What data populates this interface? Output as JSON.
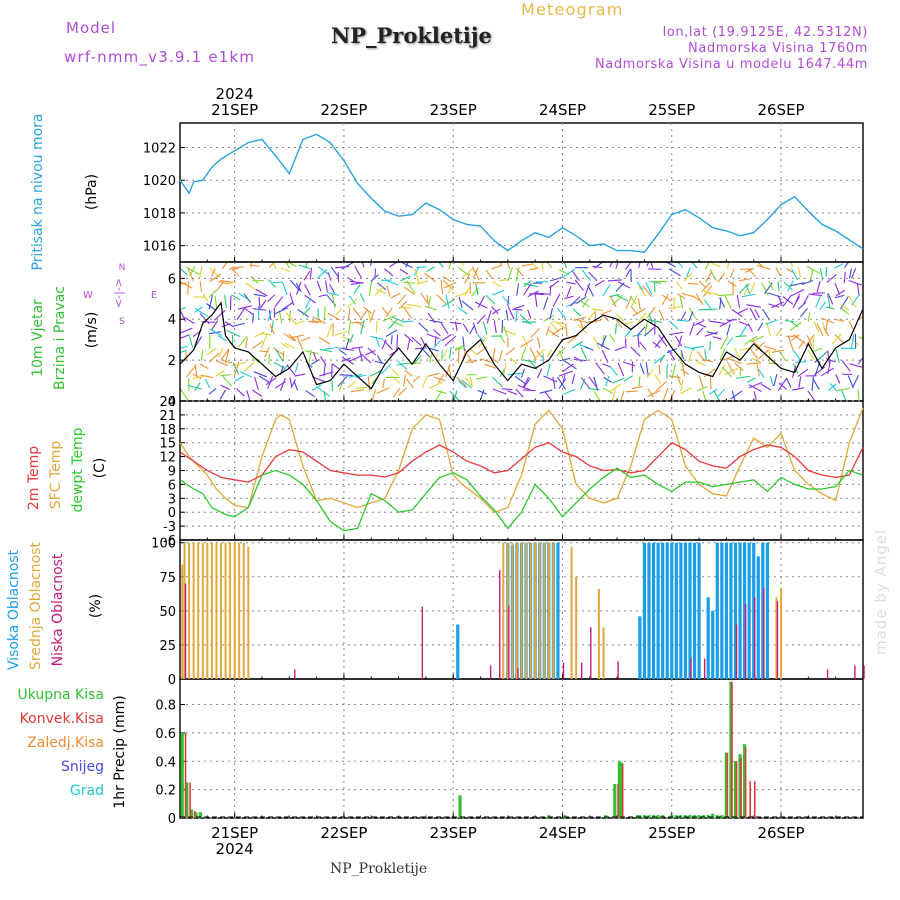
{
  "header": {
    "model_label": "Model",
    "model_name": "wrf-nmm_v3.9.1 e1km",
    "station": "NP_Prokletije",
    "meteogram_label": "Meteogram",
    "lonlat": "lon,lat (19.9125E, 42.5312N)",
    "elevation": "Nadmorska Visina 1760m",
    "model_elevation": "Nadmorska Visina u modelu 1647.44m",
    "footer_station": "NP_Prokletije",
    "watermark": "made by Angel"
  },
  "colors": {
    "pressure": "#29a3e0",
    "temp2m": "#e8393e",
    "sfc": "#e0a83a",
    "dewpt": "#2ec82e",
    "high_cloud": "#1b9ee8",
    "mid_cloud": "#e0a83a",
    "low_cloud": "#c8187a",
    "precip_total": "#32c032",
    "precip_conv": "#e03a3a",
    "precip_froz": "#f08a2e",
    "snow": "#4848e0",
    "hail": "#22c8c8",
    "header_purple": "#b04cd6",
    "header_gold": "#e6b84a"
  },
  "chart_data": {
    "type": "meteogram",
    "x_axis": {
      "type": "date",
      "start": "2024-09-20 12:00",
      "end": "2024-09-26 18:00",
      "top_year": "2024",
      "bottom_year": "2024",
      "day_labels": [
        "21SEP",
        "22SEP",
        "23SEP",
        "24SEP",
        "25SEP",
        "26SEP"
      ],
      "day_offsets": [
        12,
        36,
        60,
        84,
        108,
        132
      ],
      "grid": "dotted"
    },
    "panels": [
      {
        "id": "pressure",
        "title": "Pritisak na nivou mora",
        "unit": "(hPa)",
        "ylim": [
          1015,
          1023.5
        ],
        "yticks": [
          1016,
          1018,
          1020,
          1022
        ],
        "series": [
          {
            "name": "pressure",
            "hours": [
              0,
              2,
              3,
              5,
              7,
              9,
              12,
              15,
              18,
              21,
              24,
              27,
              30,
              33,
              36,
              39,
              42,
              45,
              48,
              51,
              54,
              57,
              60,
              63,
              66,
              69,
              72,
              75,
              78,
              81,
              84,
              87,
              90,
              93,
              96,
              99,
              102,
              105,
              108,
              111,
              114,
              117,
              120,
              123,
              126,
              129,
              132,
              135,
              138,
              141,
              144,
              150
            ],
            "values": [
              1020,
              1019.2,
              1019.9,
              1020,
              1020.8,
              1021.3,
              1021.8,
              1022.3,
              1022.5,
              1021.5,
              1020.4,
              1022.5,
              1022.8,
              1022.3,
              1021.2,
              1019.8,
              1018.9,
              1018.1,
              1017.8,
              1017.9,
              1018.6,
              1018.2,
              1017.6,
              1017.3,
              1017.2,
              1016.3,
              1015.7,
              1016.3,
              1016.8,
              1016.5,
              1017.1,
              1016.6,
              1016,
              1016.1,
              1015.7,
              1015.7,
              1015.6,
              1016.7,
              1017.9,
              1018.2,
              1017.7,
              1017.1,
              1016.9,
              1016.6,
              1016.8,
              1017.6,
              1018.5,
              1019,
              1018.1,
              1017.3,
              1016.9,
              1015.8
            ]
          }
        ]
      },
      {
        "id": "wind",
        "title": "10m Vjetar",
        "title2": "Brzina i Pravac",
        "unit": "(m/s)",
        "legend_n": "N",
        "legend_arrow": "<-|->",
        "legend_w": "W",
        "legend_e": "E",
        "legend_s": "S",
        "ylim": [
          0,
          6.8
        ],
        "yticks": [
          0,
          2,
          4,
          6
        ],
        "series": [
          {
            "name": "wind_speed",
            "hours": [
              0,
              3,
              5,
              7,
              9,
              10,
              12,
              15,
              18,
              21,
              24,
              27,
              30,
              33,
              36,
              42,
              45,
              48,
              51,
              54,
              57,
              60,
              63,
              66,
              69,
              72,
              75,
              78,
              81,
              84,
              87,
              90,
              93,
              96,
              99,
              102,
              105,
              108,
              111,
              114,
              117,
              120,
              123,
              126,
              129,
              132,
              135,
              138,
              141,
              144,
              147,
              150
            ],
            "values": [
              1.8,
              2.5,
              3.8,
              4.2,
              4.8,
              3.2,
              2.6,
              2.4,
              1.8,
              1.2,
              1.6,
              2.4,
              0.8,
              1.0,
              1.8,
              0.6,
              1.8,
              2.6,
              1.8,
              2.8,
              1.8,
              1.0,
              2.4,
              3.0,
              1.8,
              1.0,
              1.8,
              1.6,
              2.0,
              3.0,
              3.2,
              3.8,
              4.2,
              4.0,
              3.5,
              4.0,
              3.6,
              2.6,
              1.8,
              1.4,
              1.2,
              2.4,
              2.0,
              2.8,
              2.2,
              1.6,
              1.4,
              2.8,
              1.6,
              2.6,
              3.0,
              4.5
            ]
          }
        ]
      },
      {
        "id": "temperature",
        "title": "2m Temp",
        "title_sfc": "SFC Temp",
        "title_dew": "dewpt Temp",
        "unit": "(C)",
        "ylim": [
          -6,
          24
        ],
        "yticks": [
          -6,
          -3,
          0,
          3,
          6,
          9,
          12,
          15,
          18,
          21,
          24
        ],
        "series": [
          {
            "name": "2m",
            "hours": [
              0,
              3,
              6,
              9,
              12,
              15,
              18,
              21,
              24,
              27,
              30,
              33,
              36,
              39,
              42,
              45,
              48,
              51,
              54,
              57,
              60,
              63,
              66,
              69,
              72,
              75,
              78,
              81,
              84,
              87,
              90,
              93,
              96,
              99,
              102,
              105,
              108,
              111,
              114,
              117,
              120,
              123,
              126,
              129,
              132,
              135,
              138,
              141,
              144,
              147,
              150
            ],
            "values": [
              13,
              11,
              9,
              7.5,
              7,
              6.5,
              8,
              12,
              13.5,
              13,
              11,
              9,
              8.5,
              8,
              8,
              7.6,
              8.5,
              11,
              13,
              14.5,
              13,
              11,
              10,
              8.5,
              9,
              11.5,
              14,
              15,
              13,
              12,
              10,
              9,
              9.2,
              8.5,
              9,
              12,
              15,
              13.5,
              11,
              10,
              9.5,
              12,
              13.5,
              14.5,
              14,
              12,
              9,
              8,
              7.5,
              8,
              14
            ]
          },
          {
            "name": "sfc",
            "hours": [
              0,
              2,
              4,
              6,
              8,
              10,
              12,
              15,
              18,
              21,
              22,
              24,
              27,
              30,
              33,
              36,
              39,
              42,
              45,
              48,
              51,
              54,
              57,
              60,
              62,
              66,
              69,
              72,
              75,
              78,
              81,
              84,
              87,
              90,
              93,
              96,
              99,
              102,
              105,
              108,
              111,
              114,
              117,
              120,
              123,
              126,
              129,
              132,
              135,
              138,
              141,
              144,
              147,
              150
            ],
            "values": [
              15,
              12,
              10,
              8,
              5,
              3,
              1.5,
              1,
              12,
              20,
              21,
              20,
              10,
              2.5,
              3,
              2,
              1,
              2,
              3,
              9,
              18,
              21,
              20,
              8,
              6,
              3,
              0,
              1,
              8,
              19,
              22,
              18,
              6,
              3,
              2,
              3,
              10,
              20,
              22,
              20,
              10,
              6,
              4,
              3.5,
              10,
              16,
              14,
              17,
              9,
              6,
              4,
              2.5,
              15,
              22.5
            ]
          },
          {
            "name": "dew",
            "hours": [
              0,
              3,
              5,
              7,
              9,
              10,
              12,
              15,
              18,
              21,
              24,
              27,
              30,
              33,
              36,
              39,
              42,
              45,
              48,
              51,
              54,
              57,
              60,
              63,
              66,
              69,
              72,
              75,
              78,
              81,
              84,
              87,
              90,
              93,
              96,
              99,
              102,
              105,
              108,
              111,
              114,
              117,
              120,
              123,
              126,
              129,
              132,
              135,
              138,
              141,
              144,
              147,
              150
            ],
            "values": [
              7,
              5,
              4,
              1,
              0,
              -0.5,
              -1,
              1,
              8,
              9,
              8,
              6,
              2.5,
              -2,
              -4,
              -3.5,
              4,
              2.5,
              0,
              0.5,
              4,
              7.5,
              8.5,
              7,
              3.5,
              0.5,
              -3.5,
              0,
              6,
              3,
              -1,
              2,
              5,
              7.5,
              9.5,
              7.5,
              8,
              6,
              4.5,
              6.5,
              6.5,
              5.5,
              6,
              6.5,
              7,
              4.5,
              7.5,
              6,
              5,
              5,
              5.5,
              9,
              8
            ]
          }
        ]
      },
      {
        "id": "clouds",
        "title_high": "Visoka Oblacnost",
        "title_mid": "Srednja Oblacnost",
        "title_low": "Niska Oblacnost",
        "unit": "(%)",
        "ylim": [
          0,
          102
        ],
        "yticks": [
          0,
          25,
          50,
          75,
          100
        ],
        "mid": {
          "hours": [
            0.5,
            1,
            2,
            3,
            4,
            5,
            6,
            7,
            8,
            9,
            10,
            11,
            12,
            13,
            14,
            15,
            71,
            72,
            73,
            74,
            75,
            76,
            77,
            78,
            79,
            80,
            81,
            82,
            86,
            87,
            92,
            93,
            131,
            132
          ],
          "values": [
            84,
            100,
            100,
            100,
            100,
            100,
            100,
            100,
            100,
            100,
            100,
            100,
            100,
            100,
            100,
            97,
            100,
            100,
            100,
            100,
            100,
            100,
            100,
            100,
            100,
            100,
            100,
            100,
            97,
            75,
            66,
            38,
            60,
            67
          ]
        },
        "high": {
          "hours": [
            61,
            72,
            73,
            74,
            75,
            76,
            77,
            78,
            79,
            80,
            81,
            82,
            83,
            101,
            102,
            103,
            104,
            105,
            106,
            107,
            108,
            109,
            110,
            111,
            112,
            113,
            114,
            116,
            117,
            118,
            119,
            120,
            121,
            122,
            123,
            124,
            125,
            126,
            127,
            128,
            129
          ],
          "values": [
            40,
            100,
            98,
            100,
            100,
            100,
            100,
            100,
            100,
            100,
            100,
            100,
            100,
            46,
            100,
            100,
            100,
            100,
            100,
            100,
            100,
            100,
            100,
            100,
            100,
            100,
            100,
            60,
            50,
            100,
            100,
            100,
            100,
            100,
            100,
            100,
            100,
            100,
            90,
            100,
            100
          ]
        },
        "low": {
          "hours": [
            1,
            25,
            53,
            68,
            70,
            72,
            74,
            84,
            88,
            90,
            96,
            112,
            115,
            122,
            124,
            126,
            128,
            131,
            142,
            148,
            150
          ],
          "values": [
            70,
            7,
            53,
            10,
            80,
            54,
            8,
            12,
            12,
            38,
            13,
            15,
            15,
            40,
            55,
            60,
            67,
            57,
            7,
            10,
            10
          ]
        }
      },
      {
        "id": "precip",
        "title": "1hr Precip (mm)",
        "legend": [
          "Ukupna Kisa",
          "Konvek.Kisa",
          "Zaledj.Kisa",
          "Snijeg",
          "Grad"
        ],
        "ylim": [
          0,
          0.98
        ],
        "yticks": [
          0,
          0.2,
          0.4,
          0.6,
          0.8
        ],
        "total": {
          "hours": [
            0.5,
            1.5,
            2.5,
            3.5,
            4.5,
            61.5,
            81,
            84.5,
            93.5,
            95.5,
            96.5,
            97,
            100.5,
            101,
            102,
            103,
            104,
            105,
            106,
            108,
            109,
            110,
            111,
            112,
            113,
            114,
            115,
            116,
            117,
            118,
            119,
            120,
            121,
            122,
            123,
            124
          ],
          "values": [
            0.6,
            0.25,
            0.06,
            0.04,
            0.04,
            0.16,
            0.02,
            0.02,
            0.02,
            0.24,
            0.4,
            0.39,
            0.02,
            0.02,
            0.02,
            0.02,
            0.02,
            0.02,
            0.02,
            0.02,
            0.02,
            0.02,
            0.02,
            0.02,
            0.02,
            0.02,
            0.02,
            0.02,
            0.03,
            0.02,
            0.02,
            0.46,
            0.96,
            0.4,
            0.45,
            0.52
          ]
        },
        "conv": {
          "hours": [
            1,
            2,
            3,
            96,
            97,
            120,
            121,
            122,
            123,
            124,
            125,
            126
          ],
          "values": [
            0.6,
            0.25,
            0.05,
            0.24,
            0.38,
            0.46,
            0.96,
            0.4,
            0.42,
            0.5,
            0.26,
            0.26
          ]
        }
      }
    ]
  }
}
